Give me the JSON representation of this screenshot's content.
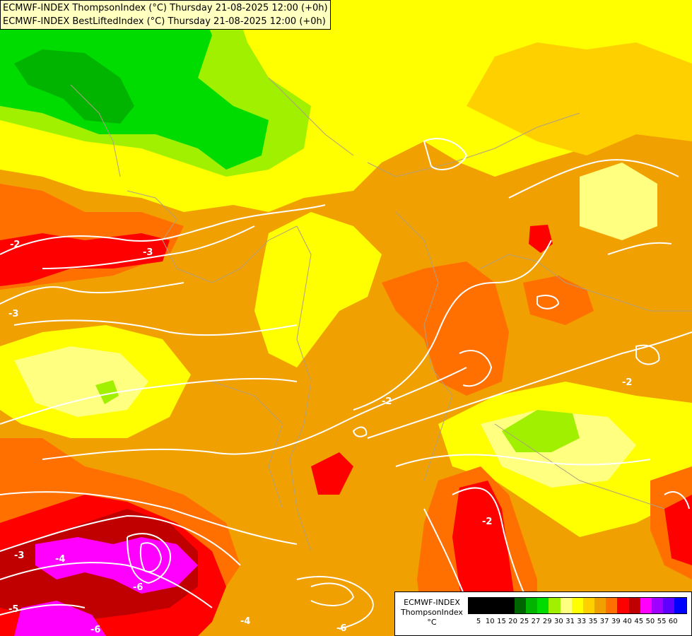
{
  "header": {
    "line1": "ECMWF-INDEX ThompsonIndex (°C) Thursday 21-08-2025 12:00 (+0h)",
    "line2": "ECMWF-INDEX BestLiftedIndex (°C) Thursday 21-08-2025 12:00 (+0h)"
  },
  "legend": {
    "title_line1": "ECMWF-INDEX",
    "title_line2": "ThompsonIndex",
    "title_line3": "°C",
    "ticks": [
      "5",
      "10",
      "15",
      "20",
      "25",
      "27",
      "29",
      "30",
      "31",
      "33",
      "35",
      "37",
      "39",
      "40",
      "45",
      "50",
      "55",
      "60"
    ],
    "colors": [
      "#000000",
      "#000000",
      "#000000",
      "#000000",
      "#006400",
      "#00b400",
      "#00dc00",
      "#a0f000",
      "#ffff80",
      "#ffff00",
      "#ffd000",
      "#f0a000",
      "#ff7000",
      "#ff0000",
      "#c00000",
      "#ff00ff",
      "#a000ff",
      "#6000ff",
      "#0000ff"
    ]
  },
  "map": {
    "contour_labels": [
      "-2",
      "-3",
      "-3",
      "-2",
      "-2",
      "-3",
      "-4",
      "-6",
      "-5",
      "-6",
      "-4",
      "-6",
      "-2"
    ]
  }
}
